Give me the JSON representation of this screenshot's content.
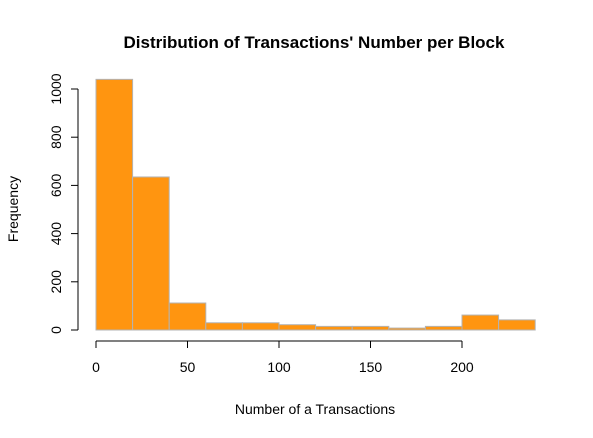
{
  "chart_data": {
    "type": "bar",
    "title": "Distribution of Transactions' Number per Block",
    "xlabel": "Number of a Transactions",
    "ylabel": "Frequency",
    "bin_edges": [
      0,
      20,
      40,
      60,
      80,
      100,
      120,
      140,
      160,
      180,
      200,
      220,
      240
    ],
    "values": [
      1040,
      635,
      112,
      30,
      30,
      22,
      15,
      15,
      8,
      15,
      62,
      42
    ],
    "xlim": [
      0,
      240
    ],
    "ylim": [
      0,
      1040
    ],
    "x_ticks": [
      0,
      50,
      100,
      150,
      200
    ],
    "y_ticks": [
      0,
      200,
      400,
      600,
      800,
      1000
    ],
    "bar_color": "#ff9510",
    "bar_border_color": "#b3b3b3",
    "grid": false,
    "legend": "none"
  }
}
